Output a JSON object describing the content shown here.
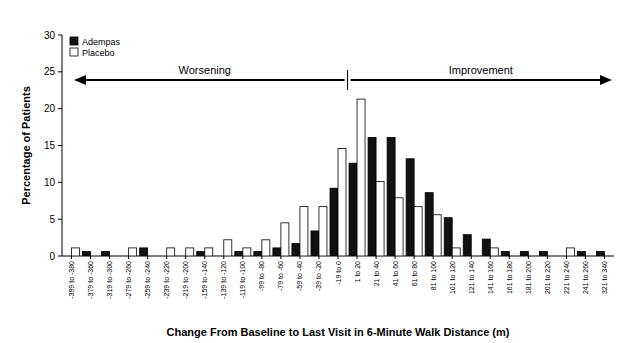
{
  "chart_data": {
    "type": "bar",
    "x_label": "Change From Baseline to Last Visit in 6-Minute Walk Distance (m)",
    "y_label": "Percentage of Patients",
    "annotations": [
      "Worsening",
      "Improvement"
    ],
    "categories": [
      "-399 to -380",
      "-379 to -360",
      "-319 to -300",
      "-279 to -260",
      "-259 to -240",
      "-239 to -220",
      "-219 to -200",
      "-159 to -140",
      "-139 to -120",
      "-119 to -100",
      "-99 to -80",
      "-79 to -60",
      "-59 to -40",
      "-39 to -20",
      "-19 to 0",
      "1 to 20",
      "21 to 40",
      "41 to 60",
      "61 to 80",
      "81 to 100",
      "101 to 120",
      "121 to 140",
      "141 to 160",
      "161 to 180",
      "181 to 200",
      "201 to 220",
      "221 to 240",
      "241 to 260",
      "321 to 340"
    ],
    "series": [
      {
        "name": "Adempas",
        "color": "#111111",
        "values": [
          0,
          0.6,
          0.6,
          0,
          1.1,
          0,
          0,
          0.6,
          0,
          0.6,
          0.6,
          1.1,
          1.7,
          3.4,
          9.2,
          12.6,
          16.1,
          16.1,
          13.2,
          8.6,
          5.2,
          2.9,
          2.3,
          0.6,
          0.6,
          0.6,
          0,
          0.6,
          0.6
        ]
      },
      {
        "name": "Placebo",
        "color": "#ffffff",
        "values": [
          1.1,
          0,
          0,
          1.1,
          0,
          1.1,
          1.1,
          1.1,
          2.2,
          1.1,
          2.2,
          4.5,
          6.7,
          6.7,
          14.6,
          21.3,
          10.1,
          7.9,
          6.7,
          5.6,
          1.1,
          0,
          1.1,
          0,
          0,
          0,
          1.1,
          0,
          0
        ]
      }
    ],
    "ylim": [
      0,
      30
    ],
    "yticks": [
      0,
      5,
      10,
      15,
      20,
      25,
      30
    ],
    "grid": false,
    "legend": "upper left"
  }
}
